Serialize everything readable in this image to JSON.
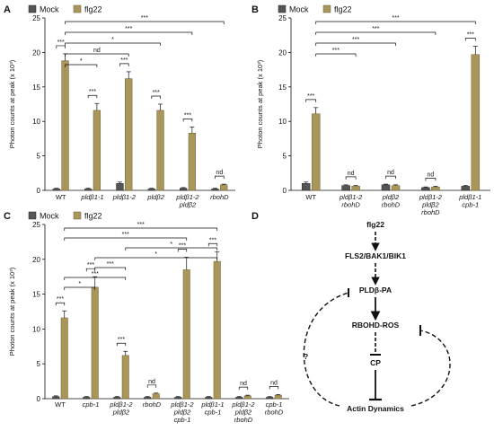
{
  "colors": {
    "mock": "#555555",
    "flg22": "#a8965a",
    "flg22_edge": "#6e5f33",
    "mock_edge": "#222222"
  },
  "legend": {
    "mock": "Mock",
    "flg22": "flg22"
  },
  "chart_data": [
    {
      "panel": "A",
      "type": "bar",
      "ylabel": "Photon counts at peak (x 10³)",
      "ylim": [
        0,
        25
      ],
      "yticks": [
        0,
        5,
        10,
        15,
        20,
        25
      ],
      "categories": [
        "WT",
        "pldβ1-1",
        "pldβ1-2",
        "pldβ2",
        "pldβ1-2\npldβ2",
        "rbohD"
      ],
      "series": [
        {
          "name": "Mock",
          "values": [
            0.2,
            0.2,
            1.0,
            0.2,
            0.3,
            0.2
          ],
          "errors": [
            0.1,
            0.1,
            0.2,
            0.1,
            0.1,
            0.1
          ]
        },
        {
          "name": "flg22",
          "values": [
            18.8,
            11.6,
            16.2,
            11.6,
            8.3,
            0.8
          ],
          "errors": [
            1.0,
            1.0,
            1.0,
            0.9,
            0.9,
            0.1
          ]
        }
      ],
      "pair_sig": [
        {
          "cat": 0,
          "label": "***"
        },
        {
          "cat": 1,
          "label": "***"
        },
        {
          "cat": 2,
          "label": "***"
        },
        {
          "cat": 3,
          "label": "***"
        },
        {
          "cat": 4,
          "label": "***"
        },
        {
          "cat": 5,
          "label": "nd"
        }
      ],
      "cross_sig": [
        {
          "from": 0,
          "to": 1,
          "label": "*"
        },
        {
          "from": 0,
          "to": 2,
          "label": "nd"
        },
        {
          "from": 0,
          "to": 3,
          "label": "*"
        },
        {
          "from": 0,
          "to": 4,
          "label": "***"
        },
        {
          "from": 0,
          "to": 5,
          "label": "***"
        }
      ]
    },
    {
      "panel": "B",
      "type": "bar",
      "ylabel": "Photon counts at peak (x 10³)",
      "ylim": [
        0,
        25
      ],
      "yticks": [
        0,
        5,
        10,
        15,
        20,
        25
      ],
      "categories": [
        "WT",
        "pldβ1-2\nrbohD",
        "pldβ2\nrbohD",
        "pldβ1-2\npldβ2\nrbohD",
        "pldβ1-1\ncpb-1"
      ],
      "series": [
        {
          "name": "Mock",
          "values": [
            1.0,
            0.7,
            0.8,
            0.4,
            0.6
          ],
          "errors": [
            0.2,
            0.1,
            0.1,
            0.1,
            0.1
          ]
        },
        {
          "name": "flg22",
          "values": [
            11.1,
            0.6,
            0.7,
            0.5,
            19.7
          ],
          "errors": [
            0.9,
            0.1,
            0.1,
            0.1,
            1.2
          ]
        }
      ],
      "pair_sig": [
        {
          "cat": 0,
          "label": "***"
        },
        {
          "cat": 1,
          "label": "nd"
        },
        {
          "cat": 2,
          "label": "nd"
        },
        {
          "cat": 3,
          "label": "nd"
        },
        {
          "cat": 4,
          "label": "***"
        }
      ],
      "cross_sig": [
        {
          "from": 0,
          "to": 1,
          "label": "***"
        },
        {
          "from": 0,
          "to": 2,
          "label": "***"
        },
        {
          "from": 0,
          "to": 3,
          "label": "***"
        },
        {
          "from": 0,
          "to": 4,
          "label": "***"
        }
      ]
    },
    {
      "panel": "C",
      "type": "bar",
      "ylabel": "Photon counts at peak (x 10³)",
      "ylim": [
        0,
        25
      ],
      "yticks": [
        0,
        5,
        10,
        15,
        20,
        25
      ],
      "categories": [
        "WT",
        "cpb-1",
        "pldβ1-2\npldβ2",
        "rbohD",
        "pldβ1-2\npldβ2\ncpb-1",
        "pldβ1-1\ncpb-1",
        "pldβ1-2\npldβ2\nrbohD",
        "cpb-1\nrbohD"
      ],
      "series": [
        {
          "name": "Mock",
          "values": [
            0.3,
            0.2,
            0.2,
            0.2,
            0.2,
            0.2,
            0.2,
            0.2
          ],
          "errors": [
            0.1,
            0.1,
            0.1,
            0.1,
            0.1,
            0.1,
            0.1,
            0.1
          ]
        },
        {
          "name": "flg22",
          "values": [
            11.6,
            16.0,
            6.2,
            0.7,
            18.5,
            19.7,
            0.4,
            0.5
          ],
          "errors": [
            1.0,
            1.5,
            0.6,
            0.1,
            1.8,
            1.4,
            0.1,
            0.1
          ]
        }
      ],
      "pair_sig": [
        {
          "cat": 0,
          "label": "***"
        },
        {
          "cat": 1,
          "label": "***"
        },
        {
          "cat": 2,
          "label": "***"
        },
        {
          "cat": 3,
          "label": "nd"
        },
        {
          "cat": 4,
          "label": "***"
        },
        {
          "cat": 5,
          "label": "***"
        },
        {
          "cat": 6,
          "label": "nd"
        },
        {
          "cat": 7,
          "label": "nd"
        }
      ],
      "cross_sig": [
        {
          "from": 0,
          "to": 1,
          "label": "*"
        },
        {
          "from": 0,
          "to": 2,
          "label": "***"
        },
        {
          "from": 1,
          "to": 2,
          "label": "***"
        },
        {
          "from": 1,
          "to": 5,
          "label": "*"
        },
        {
          "from": 2,
          "to": 5,
          "label": "*"
        },
        {
          "from": 0,
          "to": 4,
          "label": "***"
        },
        {
          "from": 0,
          "to": 5,
          "label": "***"
        }
      ]
    }
  ],
  "diagram": {
    "panel": "D",
    "nodes": [
      "flg22",
      "FLS2/BAK1/BIK1",
      "PLDβ-PA",
      "RBOHD-ROS",
      "CP",
      "Actin Dynamics"
    ],
    "question": "?"
  }
}
